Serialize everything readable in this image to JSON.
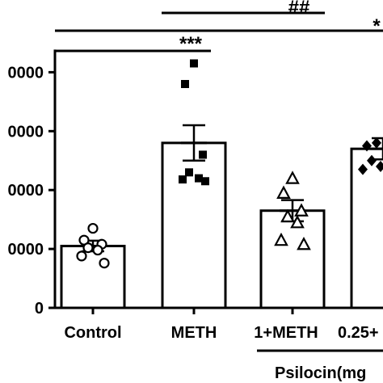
{
  "chart_data": {
    "type": "bar",
    "title": "",
    "xlabel": "",
    "ylabel": "",
    "ylim": [
      0,
      40000
    ],
    "yticks": [
      0,
      10000,
      20000,
      30000,
      40000
    ],
    "ytick_labels": [
      "0",
      "0000",
      "0000",
      "0000",
      "0000"
    ],
    "categories": [
      "Control",
      "METH",
      "1+METH",
      "0.25+"
    ],
    "means": [
      10500,
      28000,
      16500,
      27000
    ],
    "sem": [
      900,
      3000,
      1800,
      1800
    ],
    "points": [
      [
        13500,
        11500,
        10800,
        10200,
        9800,
        8800,
        7600
      ],
      [
        41500,
        38000,
        26000,
        23000,
        22000,
        21800,
        21500
      ],
      [
        22000,
        19500,
        16500,
        15500,
        14500,
        11500,
        10800
      ],
      [
        25000,
        23500,
        24000,
        27500,
        28000
      ]
    ],
    "markers": [
      "circle-open",
      "square-filled",
      "triangle-open",
      "diamond-filled"
    ],
    "group_label": "Psilocin(mg",
    "significance": [
      {
        "label": "***",
        "from": "Control",
        "to": "METH"
      },
      {
        "label": "##",
        "from": "METH",
        "to": "1+METH"
      },
      {
        "label": "*",
        "from": "Control",
        "to": "0.25+"
      }
    ]
  }
}
